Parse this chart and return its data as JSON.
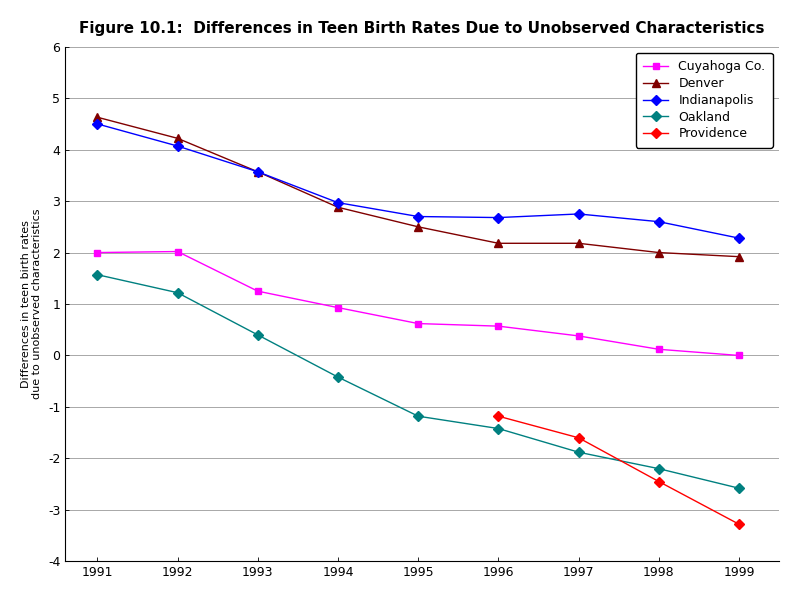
{
  "title": "Figure 10.1:  Differences in Teen Birth Rates Due to Unobserved Characteristics",
  "ylabel": "Differences in teen birth rates\ndue to unobserved characteristics",
  "years": [
    1991,
    1992,
    1993,
    1994,
    1995,
    1996,
    1997,
    1998,
    1999
  ],
  "series": [
    {
      "label": "Cuyahoga Co.",
      "color": "#FF00FF",
      "marker": "s",
      "markersize": 5,
      "linewidth": 1.0,
      "values": [
        2.0,
        2.02,
        1.25,
        0.93,
        0.62,
        0.57,
        0.38,
        0.12,
        0.0
      ]
    },
    {
      "label": "Denver",
      "color": "#800000",
      "marker": "^",
      "markersize": 6,
      "linewidth": 1.0,
      "values": [
        4.63,
        4.22,
        3.57,
        2.88,
        2.5,
        2.18,
        2.18,
        2.0,
        1.92
      ]
    },
    {
      "label": "Indianapolis",
      "color": "#0000FF",
      "marker": "D",
      "markersize": 5,
      "linewidth": 1.0,
      "values": [
        4.5,
        4.07,
        3.57,
        2.97,
        2.7,
        2.68,
        2.75,
        2.6,
        2.28
      ]
    },
    {
      "label": "Oakland",
      "color": "#008080",
      "marker": "D",
      "markersize": 5,
      "linewidth": 1.0,
      "values": [
        1.57,
        1.22,
        0.4,
        -0.42,
        -1.18,
        -1.42,
        -1.88,
        -2.2,
        -2.58
      ]
    },
    {
      "label": "Providence",
      "color": "#FF0000",
      "marker": "D",
      "markersize": 5,
      "linewidth": 1.0,
      "values": [
        null,
        null,
        null,
        null,
        null,
        -1.18,
        -1.6,
        -2.45,
        -3.28
      ]
    }
  ],
  "ylim": [
    -4,
    6
  ],
  "yticks": [
    -4,
    -3,
    -2,
    -1,
    0,
    1,
    2,
    3,
    4,
    5,
    6
  ],
  "background_color": "#FFFFFF",
  "plot_bg_color": "#FFFFFF",
  "grid_color": "#808080",
  "title_fontsize": 11,
  "axis_fontsize": 9,
  "ylabel_fontsize": 8,
  "legend_fontsize": 9
}
